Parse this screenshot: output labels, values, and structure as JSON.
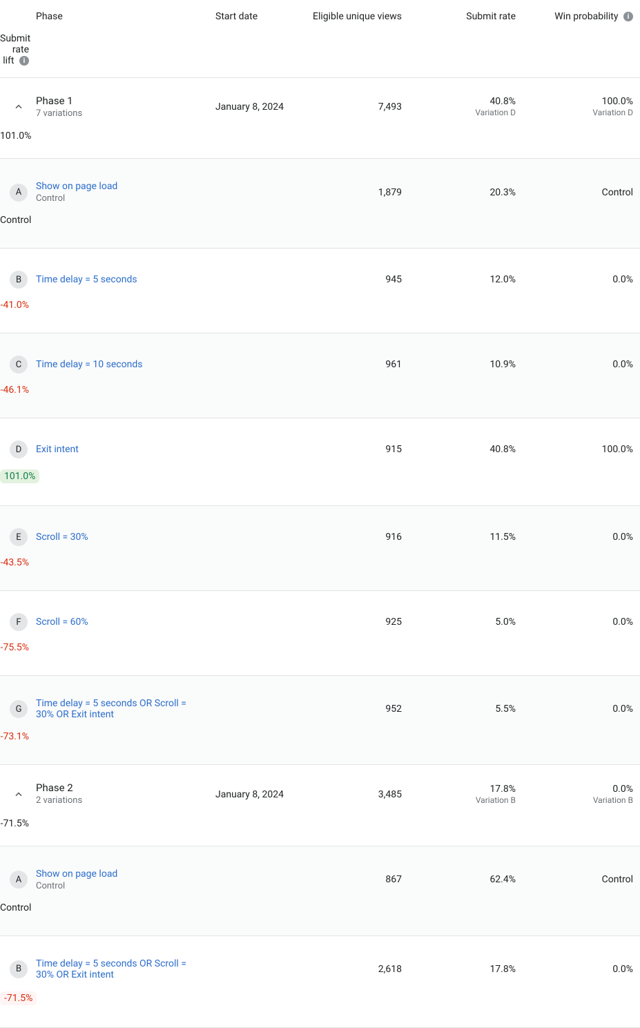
{
  "headers": {
    "phase": "Phase",
    "start_date": "Start date",
    "eligible": "Eligible unique views",
    "submit_rate": "Submit rate",
    "win_prob": "Win probability",
    "lift": "Submit rate lift"
  },
  "phases": [
    {
      "title": "Phase 1",
      "sub": "7 variations",
      "start_date": "January 8, 2024",
      "eligible": "7,493",
      "submit_rate": "40.8%",
      "submit_rate_sub": "Variation D",
      "win_prob": "100.0%",
      "win_prob_sub": "Variation D",
      "lift": "101.0%",
      "variants": [
        {
          "letter": "A",
          "name": "Show on page load",
          "sub": "Control",
          "striped": true,
          "eligible": "1,879",
          "submit_rate": "20.3%",
          "win_prob": "Control",
          "lift": "Control",
          "lift_style": "plain"
        },
        {
          "letter": "B",
          "name": "Time delay = 5 seconds",
          "striped": false,
          "eligible": "945",
          "submit_rate": "12.0%",
          "win_prob": "0.0%",
          "lift": "-41.0%",
          "lift_style": "neg"
        },
        {
          "letter": "C",
          "name": "Time delay = 10 seconds",
          "striped": true,
          "eligible": "961",
          "submit_rate": "10.9%",
          "win_prob": "0.0%",
          "lift": "-46.1%",
          "lift_style": "neg"
        },
        {
          "letter": "D",
          "name": "Exit intent",
          "striped": false,
          "eligible": "915",
          "submit_rate": "40.8%",
          "win_prob": "100.0%",
          "lift": "101.0%",
          "lift_style": "pos"
        },
        {
          "letter": "E",
          "name": "Scroll = 30%",
          "striped": true,
          "eligible": "916",
          "submit_rate": "11.5%",
          "win_prob": "0.0%",
          "lift": "-43.5%",
          "lift_style": "neg"
        },
        {
          "letter": "F",
          "name": "Scroll = 60%",
          "striped": false,
          "eligible": "925",
          "submit_rate": "5.0%",
          "win_prob": "0.0%",
          "lift": "-75.5%",
          "lift_style": "neg"
        },
        {
          "letter": "G",
          "name": "Time delay = 5 seconds OR Scroll = 30% OR Exit intent",
          "striped": true,
          "eligible": "952",
          "submit_rate": "5.5%",
          "win_prob": "0.0%",
          "lift": "-73.1%",
          "lift_style": "neg"
        }
      ]
    },
    {
      "title": "Phase 2",
      "sub": "2 variations",
      "start_date": "January 8, 2024",
      "eligible": "3,485",
      "submit_rate": "17.8%",
      "submit_rate_sub": "Variation B",
      "win_prob": "0.0%",
      "win_prob_sub": "Variation B",
      "lift": "-71.5%",
      "variants": [
        {
          "letter": "A",
          "name": "Show on page load",
          "sub": "Control",
          "striped": true,
          "eligible": "867",
          "submit_rate": "62.4%",
          "win_prob": "Control",
          "lift": "Control",
          "lift_style": "plain"
        },
        {
          "letter": "B",
          "name": "Time delay = 5 seconds OR Scroll = 30% OR Exit intent",
          "striped": false,
          "eligible": "2,618",
          "submit_rate": "17.8%",
          "win_prob": "0.0%",
          "lift": "-71.5%",
          "lift_style": "neglight"
        }
      ]
    }
  ],
  "colors": {
    "link": "#2c6ecb",
    "neg_text": "#d82c0d",
    "pos_bg": "#e3f1df",
    "pos_text": "#108043",
    "neglight_bg": "#fff4f4",
    "badge_bg": "#e4e5e7",
    "border": "#e1e3e5",
    "subdued": "#6d7175",
    "info_bg": "#8c9196"
  }
}
